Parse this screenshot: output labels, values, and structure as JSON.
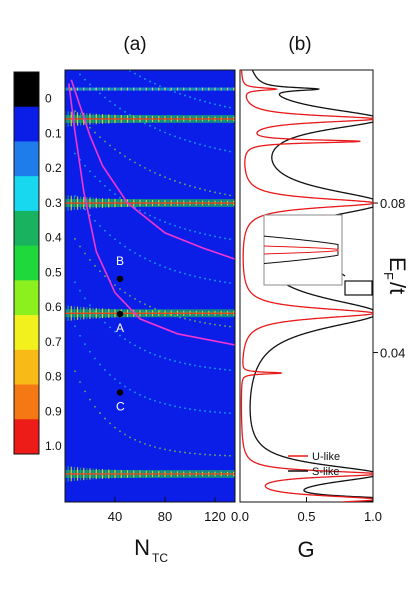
{
  "chart_data": [
    {
      "type": "heatmap",
      "panel_label": "(a)",
      "xlabel_main": "N",
      "xlabel_sub": "TC",
      "xlim": [
        0,
        136
      ],
      "ylim": [
        0,
        0.1156
      ],
      "x_ticks": [
        {
          "v": 40,
          "label": "40"
        },
        {
          "v": 80,
          "label": "80"
        },
        {
          "v": 120,
          "label": "120"
        }
      ],
      "colorbar": {
        "labels": [
          "0",
          "0.1",
          "0.2",
          "0.3",
          "0.4",
          "0.5",
          "0.6",
          "0.7",
          "0.8",
          "0.9",
          "1.0"
        ],
        "colors": [
          "#000000",
          "#0a1ee8",
          "#1e7dea",
          "#18d8ef",
          "#19b35f",
          "#1fd93c",
          "#8cf01f",
          "#f2f11d",
          "#f7ba17",
          "#f47915",
          "#ee1c18"
        ]
      },
      "background_color": "#0a1ee8",
      "resonance_bands": [
        {
          "y": 0.1105,
          "x_start": 0,
          "x_end": 136,
          "strength": "weak"
        },
        {
          "y": 0.1025,
          "x_start": 0,
          "x_end": 136,
          "strength": "strong"
        },
        {
          "y": 0.08,
          "x_start": 0,
          "x_end": 136,
          "strength": "strong"
        },
        {
          "y": 0.0505,
          "x_start": 0,
          "x_end": 136,
          "strength": "strong"
        },
        {
          "y": 0.0075,
          "x_start": 0,
          "x_end": 136,
          "strength": "strong"
        }
      ],
      "magenta_curves": [
        {
          "name": "upper",
          "points": [
            [
              5,
              0.113
            ],
            [
              10,
              0.108
            ],
            [
              20,
              0.098
            ],
            [
              30,
              0.09
            ],
            [
              50,
              0.08
            ],
            [
              80,
              0.072
            ],
            [
              110,
              0.068
            ],
            [
              136,
              0.065
            ]
          ]
        },
        {
          "name": "lower",
          "points": [
            [
              3,
              0.112
            ],
            [
              8,
              0.099
            ],
            [
              15,
              0.083
            ],
            [
              25,
              0.067
            ],
            [
              40,
              0.056
            ],
            [
              60,
              0.049
            ],
            [
              90,
              0.045
            ],
            [
              136,
              0.042
            ]
          ]
        }
      ],
      "points": [
        {
          "label": "B",
          "x": 44,
          "y": 0.0597
        },
        {
          "label": "A",
          "x": 44,
          "y": 0.0503
        },
        {
          "label": "C",
          "x": 44,
          "y": 0.0293
        }
      ]
    },
    {
      "type": "line",
      "panel_label": "(b)",
      "xlabel": "G",
      "ylabel": "E_F/t",
      "ylabel_main": "E",
      "ylabel_sub": "F",
      "ylabel_rest": "/t",
      "xlim": [
        0,
        1
      ],
      "ylim": [
        0,
        0.1156
      ],
      "x_ticks": [
        {
          "v": 0,
          "label": "0.0"
        },
        {
          "v": 0.5,
          "label": "0.5"
        },
        {
          "v": 1.0,
          "label": "1.0"
        }
      ],
      "y_ticks": [
        {
          "v": 0.04,
          "label": "0.04"
        },
        {
          "v": 0.08,
          "label": "0.08"
        }
      ],
      "series": [
        {
          "name": "U-like",
          "color": "#e8191a",
          "peaks": [
            {
              "y": 0.0007,
              "g": 1.0,
              "w": 0.0012
            },
            {
              "y": 0.0075,
              "g": 1.0,
              "w": 0.001
            },
            {
              "y": 0.0345,
              "g": 0.3,
              "w": 0.0003
            },
            {
              "y": 0.0505,
              "g": 1.0,
              "w": 0.0016
            },
            {
              "y": 0.08,
              "g": 1.0,
              "w": 0.0015
            },
            {
              "y": 0.0965,
              "g": 0.86,
              "w": 0.0005
            },
            {
              "y": 0.1025,
              "g": 1.0,
              "w": 0.0011
            },
            {
              "y": 0.1105,
              "g": 0.25,
              "w": 0.0004
            }
          ]
        },
        {
          "name": "S-like",
          "color": "#111111",
          "peaks": [
            {
              "y": 0.0007,
              "g": 1.0,
              "w": 0.001
            },
            {
              "y": 0.0075,
              "g": 1.0,
              "w": 0.003
            },
            {
              "y": 0.0505,
              "g": 1.0,
              "w": 0.005
            },
            {
              "y": 0.08,
              "g": 1.0,
              "w": 0.0045
            },
            {
              "y": 0.1025,
              "g": 1.0,
              "w": 0.0035
            },
            {
              "y": 0.1105,
              "g": 0.4,
              "w": 0.0005
            }
          ]
        }
      ],
      "legend_position": "bottom-right",
      "inset": {
        "zoom_y": 0.0505
      }
    }
  ]
}
